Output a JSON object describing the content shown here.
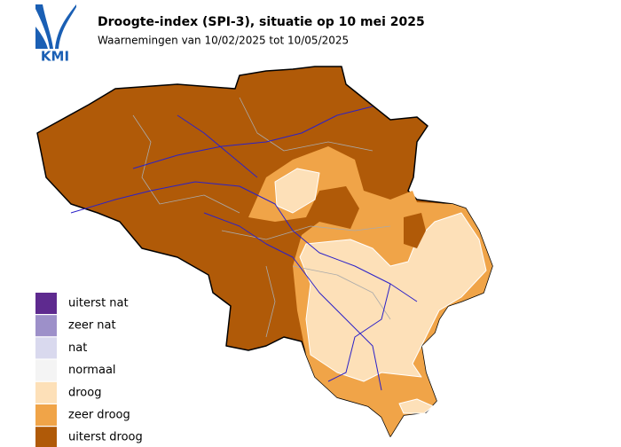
{
  "logo": {
    "text": "KMI"
  },
  "header": {
    "title": "Droogte-index (SPI-3), situatie op 10 mei 2025",
    "subtitle": "Waarnemingen van 10/02/2025 tot 10/05/2025"
  },
  "legend": {
    "items": [
      {
        "label": "uiterst nat",
        "color": "#5e2a8f"
      },
      {
        "label": "zeer nat",
        "color": "#9d90c9"
      },
      {
        "label": "nat",
        "color": "#d9d9ee"
      },
      {
        "label": "normaal",
        "color": "#f4f4f4"
      },
      {
        "label": "droog",
        "color": "#fde0b8"
      },
      {
        "label": "zeer droog",
        "color": "#f0a448"
      },
      {
        "label": "uiterst droog",
        "color": "#b05a08"
      }
    ]
  }
}
